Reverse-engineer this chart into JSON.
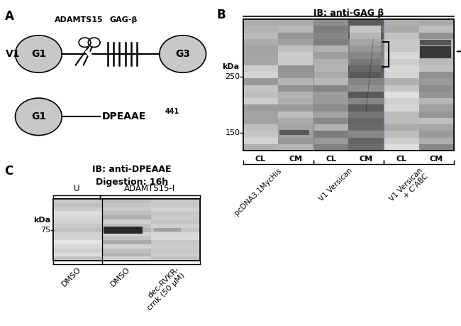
{
  "fig_width": 6.5,
  "fig_height": 4.59,
  "bg_color": "#ffffff",
  "panel_A": {
    "label": "A",
    "v1_label": "V1",
    "g1_text": "G1",
    "g3_text": "G3",
    "adamts_label": "ADAMTS15",
    "gag_label": "GAG-β",
    "g1_bottom_text": "G1",
    "dpeaae_text": "DPEAAE",
    "dpeaae_superscript": "441"
  },
  "panel_B": {
    "label": "B",
    "title": "IB: anti-GAG β",
    "kda_label": "kDa",
    "markers": [
      250,
      150
    ],
    "col_labels": [
      "CL",
      "CM",
      "CL",
      "CM",
      "CL",
      "CM"
    ],
    "group_labels": [
      "pcDNA3.1MycHis",
      "V1 Versican",
      "V1 Versican\n+ C’ABC"
    ]
  },
  "panel_C": {
    "label": "C",
    "title_line1": "IB: anti-DPEAAE",
    "title_line2": "Digestion: 16h",
    "u_label": "U",
    "adamts_label": "ADAMTS15-I",
    "kda_label": "kDa",
    "marker": 75,
    "col_labels": [
      "DMSO",
      "DMSO",
      "dec-RVKR-\ncmk (50 μM)"
    ]
  }
}
